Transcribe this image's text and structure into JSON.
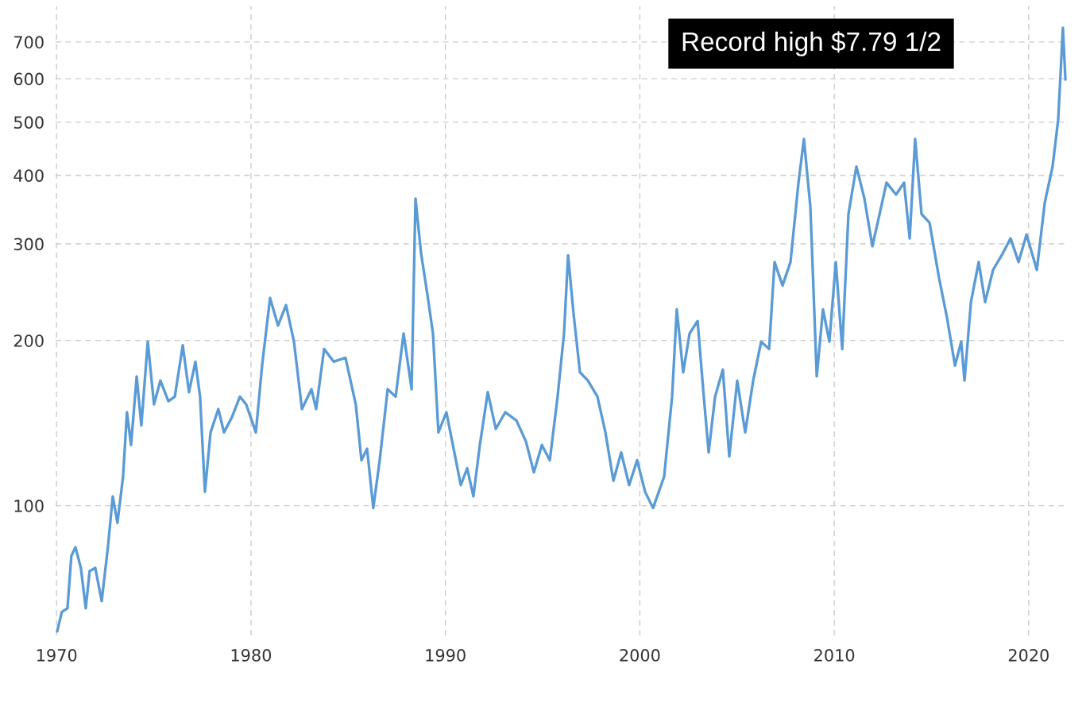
{
  "chart_data": {
    "type": "line",
    "log": "y",
    "annotations": [
      "Record high $7.79 1/2"
    ],
    "xlim": [
      1969.95,
      2022.05
    ],
    "ylim": [
      58,
      813
    ],
    "xticks": [
      1970,
      1980,
      1990,
      2000,
      2010,
      2020
    ],
    "yticks": [
      100,
      200,
      300,
      400,
      500,
      600,
      700
    ],
    "grid": true,
    "line_style": "solid",
    "series": [
      {
        "color": "#5b9bd5",
        "x": [
          1970.03,
          1970.27,
          1970.56,
          1970.76,
          1970.97,
          1971.25,
          1971.5,
          1971.7,
          1971.99,
          1972.32,
          1972.64,
          1972.89,
          1973.13,
          1973.42,
          1973.62,
          1973.83,
          1974.12,
          1974.36,
          1974.69,
          1975.01,
          1975.34,
          1975.75,
          1976.08,
          1976.49,
          1976.81,
          1977.14,
          1977.38,
          1977.63,
          1977.92,
          1978.32,
          1978.61,
          1979.02,
          1979.43,
          1979.75,
          1980.25,
          1980.57,
          1980.98,
          1981.39,
          1981.8,
          1982.21,
          1982.62,
          1983.11,
          1983.35,
          1983.76,
          1984.25,
          1984.86,
          1985.39,
          1985.68,
          1985.97,
          1986.29,
          1986.62,
          1987.03,
          1987.44,
          1987.85,
          1988.26,
          1988.46,
          1988.75,
          1989.07,
          1989.36,
          1989.64,
          1990.05,
          1990.46,
          1990.79,
          1991.12,
          1991.44,
          1991.77,
          1992.18,
          1992.59,
          1993.08,
          1993.65,
          1994.14,
          1994.55,
          1994.96,
          1995.37,
          1995.77,
          1996.1,
          1996.31,
          1996.59,
          1996.92,
          1997.33,
          1997.82,
          1998.23,
          1998.64,
          1999.04,
          1999.45,
          1999.86,
          2000.27,
          2000.68,
          2001.25,
          2001.66,
          2001.9,
          2002.23,
          2002.56,
          2002.97,
          2003.29,
          2003.54,
          2003.87,
          2004.27,
          2004.6,
          2005.01,
          2005.42,
          2005.83,
          2006.24,
          2006.65,
          2006.93,
          2007.34,
          2007.75,
          2008.16,
          2008.44,
          2008.77,
          2009.1,
          2009.42,
          2009.75,
          2010.08,
          2010.41,
          2010.73,
          2011.14,
          2011.55,
          2011.96,
          2012.37,
          2012.69,
          2013.18,
          2013.59,
          2013.88,
          2014.16,
          2014.49,
          2014.9,
          2015.39,
          2015.8,
          2016.21,
          2016.53,
          2016.7,
          2017.03,
          2017.43,
          2017.76,
          2018.17,
          2018.66,
          2019.07,
          2019.48,
          2019.89,
          2020.42,
          2020.83,
          2021.23,
          2021.52,
          2021.76,
          2021.89
        ],
        "values": [
          59,
          64,
          65,
          81,
          84,
          77,
          65,
          76,
          77,
          67,
          84,
          104,
          93,
          113,
          148,
          129,
          172,
          140,
          199,
          153,
          169,
          155,
          158,
          196,
          161,
          183,
          158,
          106,
          136,
          150,
          136,
          145,
          158,
          153,
          136,
          180,
          239,
          213,
          232,
          199,
          150,
          163,
          150,
          193,
          183,
          186,
          153,
          121,
          127,
          99,
          121,
          163,
          158,
          206,
          163,
          363,
          288,
          243,
          206,
          136,
          148,
          125,
          109,
          117,
          104,
          129,
          161,
          138,
          148,
          143,
          131,
          115,
          129,
          121,
          158,
          206,
          286,
          224,
          175,
          169,
          158,
          136,
          111,
          125,
          109,
          121,
          106,
          99,
          113,
          158,
          228,
          175,
          206,
          217,
          158,
          125,
          158,
          177,
          123,
          169,
          136,
          169,
          199,
          193,
          278,
          252,
          278,
          388,
          466,
          351,
          172,
          228,
          199,
          278,
          193,
          340,
          415,
          363,
          297,
          345,
          388,
          369,
          388,
          307,
          466,
          340,
          328,
          260,
          220,
          180,
          199,
          169,
          235,
          278,
          235,
          269,
          288,
          307,
          278,
          312,
          269,
          357,
          415,
          506,
          743,
          598
        ]
      }
    ]
  }
}
